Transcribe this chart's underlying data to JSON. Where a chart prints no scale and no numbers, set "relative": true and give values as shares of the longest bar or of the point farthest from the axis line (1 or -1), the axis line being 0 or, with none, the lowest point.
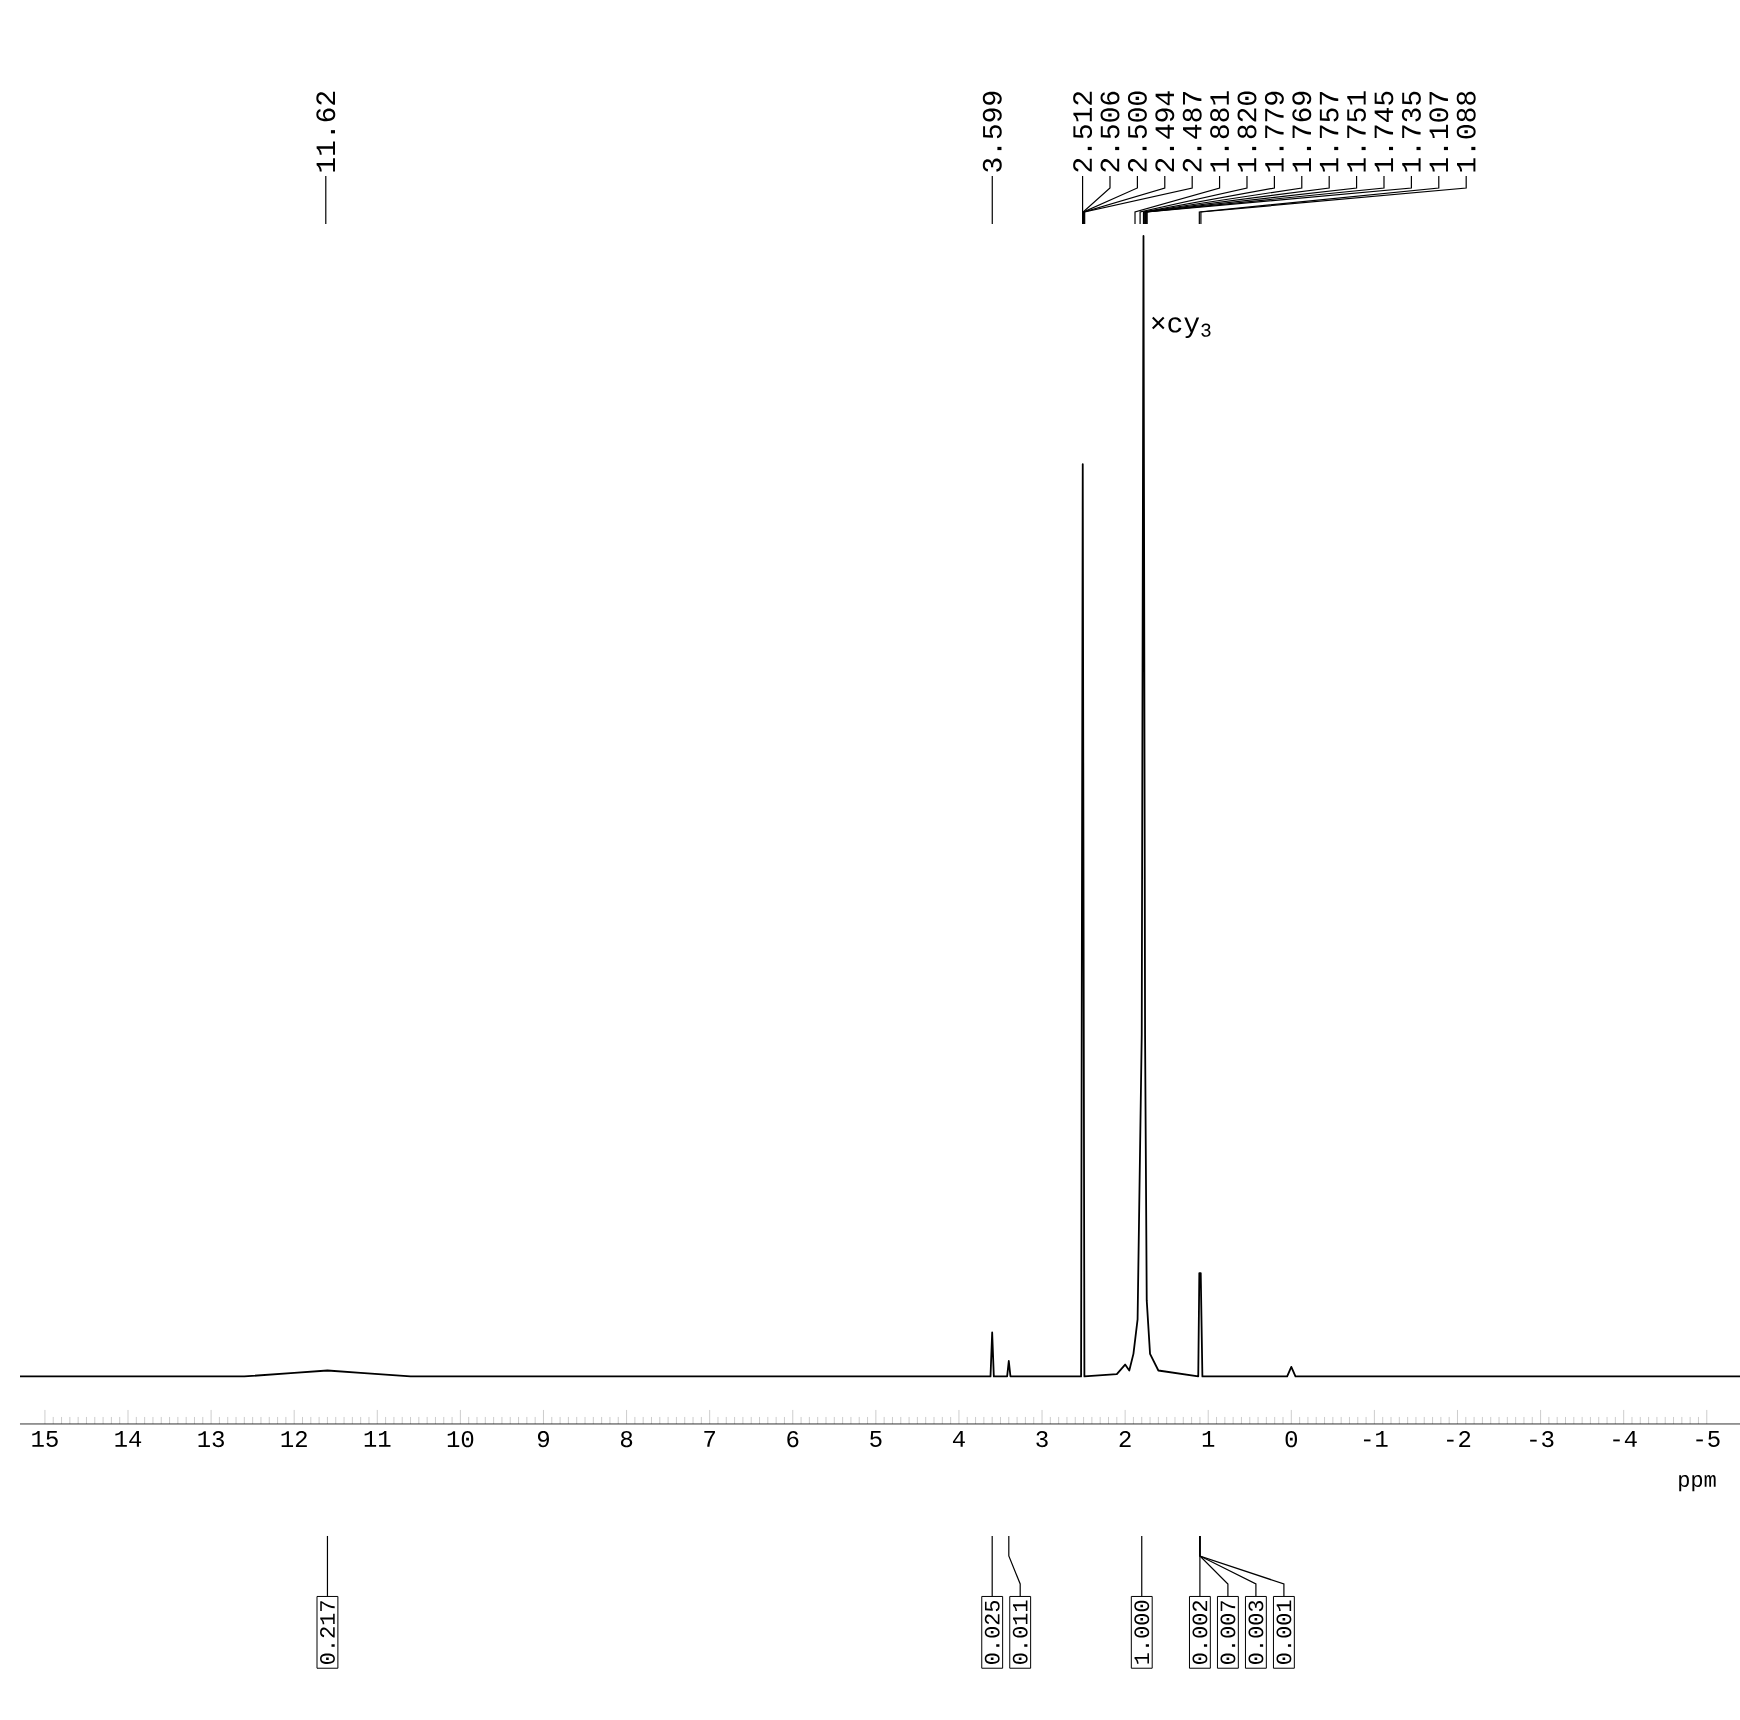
{
  "chart_data": {
    "type": "line",
    "xlabel": "ppm",
    "relative": true,
    "color": "#000000",
    "xlim": [
      15.3,
      -5.4
    ],
    "xticks": [
      15,
      14,
      13,
      12,
      11,
      10,
      9,
      8,
      7,
      6,
      5,
      4,
      3,
      2,
      1,
      0,
      -1,
      -2,
      -3,
      -4,
      -5
    ],
    "x": [
      15.3,
      12.6,
      12.0,
      11.6,
      11.2,
      10.6,
      3.7,
      3.62,
      3.6,
      3.58,
      3.42,
      3.4,
      3.38,
      2.53,
      2.51,
      2.49,
      2.1,
      2.0,
      1.95,
      1.9,
      1.85,
      1.8,
      1.779,
      1.76,
      1.74,
      1.7,
      1.6,
      1.12,
      1.107,
      1.09,
      1.07,
      0.05,
      0.0,
      -0.05,
      -5.4
    ],
    "values": [
      0.04,
      0.04,
      0.043,
      0.045,
      0.043,
      0.04,
      0.04,
      0.04,
      0.077,
      0.04,
      0.04,
      0.053,
      0.04,
      0.04,
      0.808,
      0.04,
      0.042,
      0.05,
      0.045,
      0.059,
      0.088,
      0.328,
      1.0,
      0.328,
      0.104,
      0.059,
      0.045,
      0.04,
      0.127,
      0.127,
      0.04,
      0.04,
      0.048,
      0.04,
      0.04
    ],
    "annotations": [
      {
        "text": "11.62",
        "x": 11.62
      },
      {
        "text": "3.599",
        "x": 3.599
      },
      {
        "text": "2.512",
        "x": 2.512
      },
      {
        "text": "2.506",
        "x": 2.506
      },
      {
        "text": "2.500",
        "x": 2.5
      },
      {
        "text": "2.494",
        "x": 2.494
      },
      {
        "text": "2.487",
        "x": 2.487
      },
      {
        "text": "1.881",
        "x": 1.881
      },
      {
        "text": "1.820",
        "x": 1.82
      },
      {
        "text": "1.779",
        "x": 1.779
      },
      {
        "text": "1.769",
        "x": 1.769
      },
      {
        "text": "1.757",
        "x": 1.757
      },
      {
        "text": "1.751",
        "x": 1.751
      },
      {
        "text": "1.745",
        "x": 1.745
      },
      {
        "text": "1.735",
        "x": 1.735
      },
      {
        "text": "1.107",
        "x": 1.107
      },
      {
        "text": "1.088",
        "x": 1.088
      },
      {
        "text": "0.217",
        "x": 11.6
      },
      {
        "text": "0.025",
        "x": 3.6
      },
      {
        "text": "0.011",
        "x": 3.4
      },
      {
        "text": "1.000",
        "x": 1.8
      },
      {
        "text": "0.002",
        "x": 1.1
      },
      {
        "text": "0.007",
        "x": 1.1
      },
      {
        "text": "0.003",
        "x": 1.1
      },
      {
        "text": "0.001",
        "x": 1.1
      },
      {
        "text": "×cy$_{3}$",
        "x": 1.779,
        "y": 0.923
      }
    ]
  }
}
